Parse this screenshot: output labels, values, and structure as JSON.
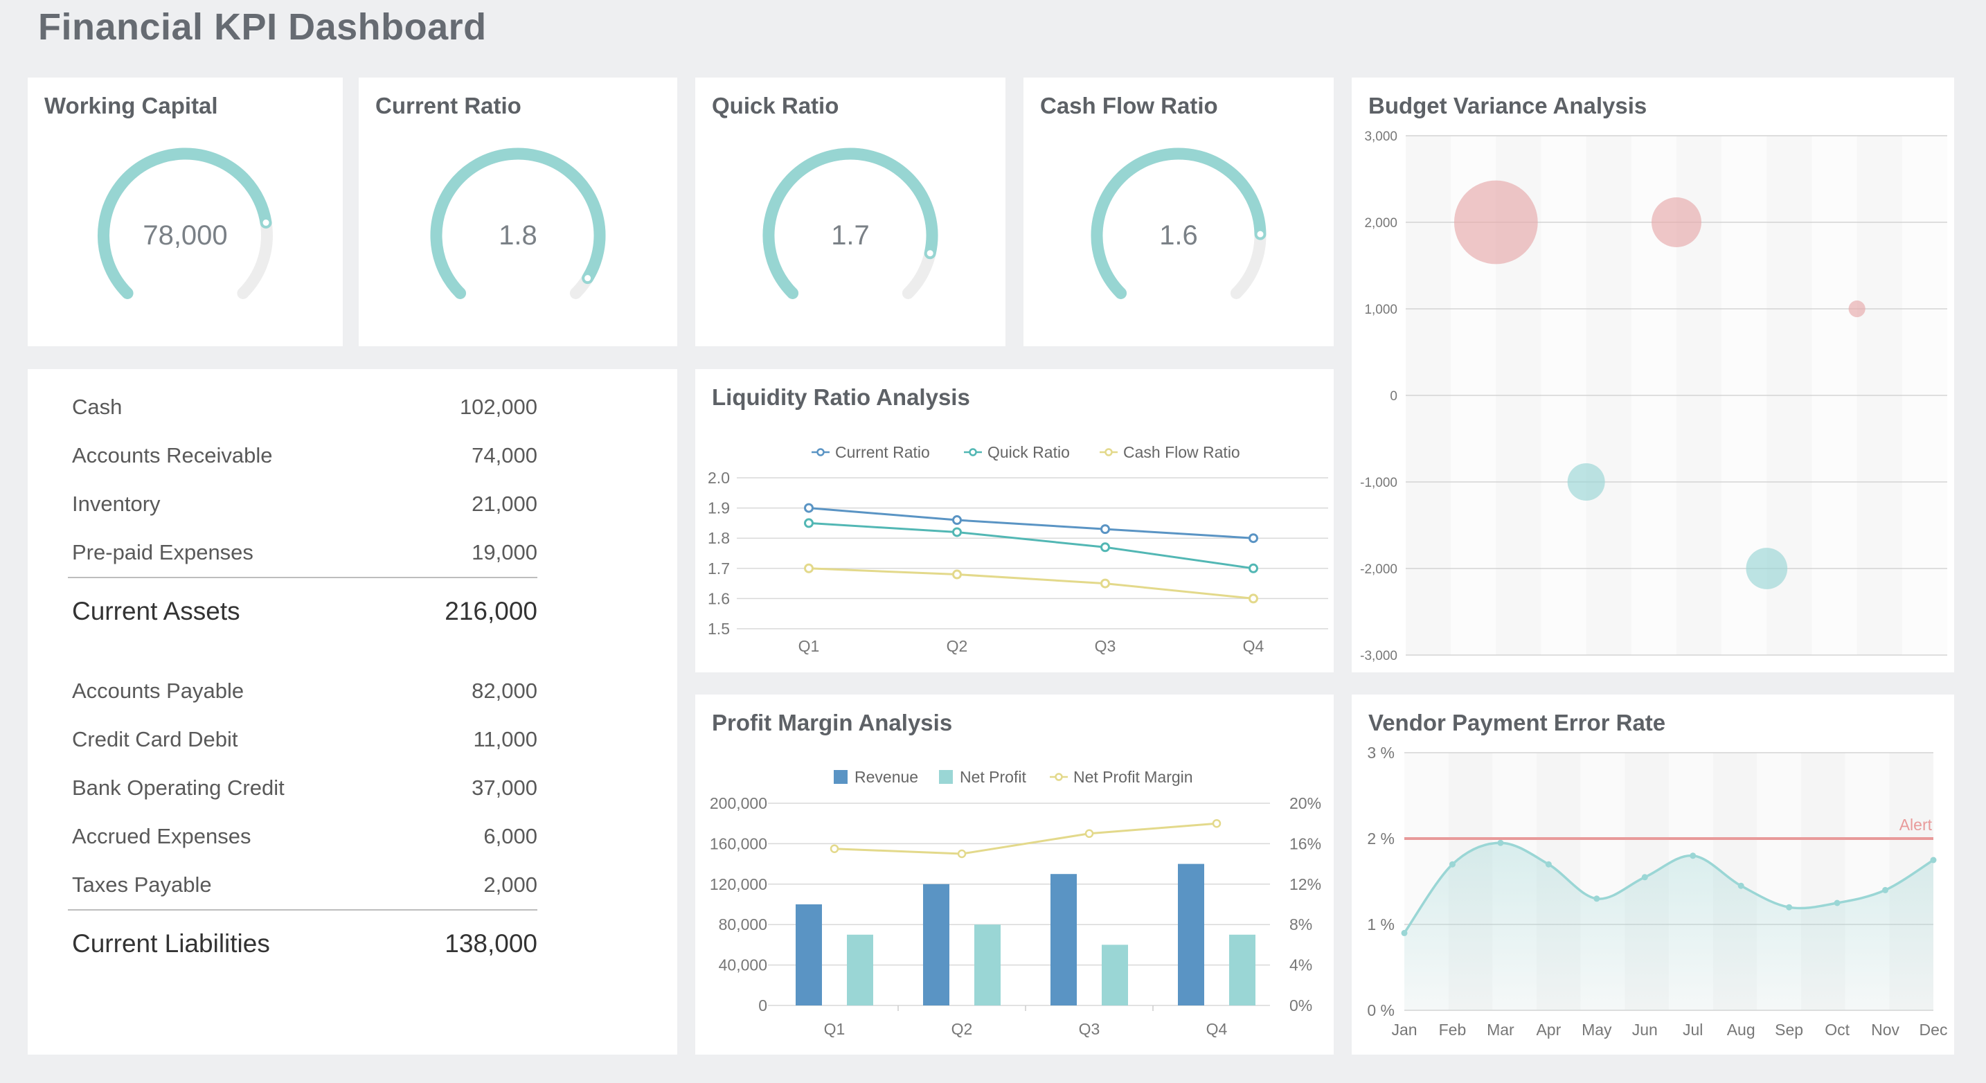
{
  "header": {
    "title": "Financial KPI Dashboard"
  },
  "colors": {
    "gauge": "#97d5d2",
    "gauge_track": "#ededed",
    "blue": "#5a94c4",
    "teal": "#9ad6d5",
    "line_teal": "#52b7b4",
    "yellow": "#e3d98b",
    "pink": "#e7a9ab",
    "alert": "#e89a9a"
  },
  "gauges": [
    {
      "title": "Working Capital",
      "value_label": "78,000",
      "fill": 0.8
    },
    {
      "title": "Current Ratio",
      "value_label": "1.8",
      "fill": 0.95
    },
    {
      "title": "Quick Ratio",
      "value_label": "1.7",
      "fill": 0.88
    },
    {
      "title": "Cash Flow Ratio",
      "value_label": "1.6",
      "fill": 0.83
    }
  ],
  "balance_sheet": {
    "assets": [
      {
        "label": "Cash",
        "value": "102,000"
      },
      {
        "label": "Accounts Receivable",
        "value": "74,000"
      },
      {
        "label": "Inventory",
        "value": "21,000"
      },
      {
        "label": "Pre-paid Expenses",
        "value": "19,000"
      }
    ],
    "assets_total": {
      "label": "Current Assets",
      "value": "216,000"
    },
    "liabilities": [
      {
        "label": "Accounts Payable",
        "value": "82,000"
      },
      {
        "label": "Credit Card Debit",
        "value": "11,000"
      },
      {
        "label": "Bank Operating Credit",
        "value": "37,000"
      },
      {
        "label": "Accrued Expenses",
        "value": "6,000"
      },
      {
        "label": "Taxes Payable",
        "value": "2,000"
      }
    ],
    "liabilities_total": {
      "label": "Current Liabilities",
      "value": "138,000"
    }
  },
  "chart_data": [
    {
      "id": "liquidity",
      "type": "line",
      "title": "Liquidity Ratio Analysis",
      "categories": [
        "Q1",
        "Q2",
        "Q3",
        "Q4"
      ],
      "series": [
        {
          "name": "Current Ratio",
          "values": [
            1.9,
            1.86,
            1.83,
            1.8
          ]
        },
        {
          "name": "Quick Ratio",
          "values": [
            1.85,
            1.82,
            1.77,
            1.7
          ]
        },
        {
          "name": "Cash Flow Ratio",
          "values": [
            1.7,
            1.68,
            1.65,
            1.6
          ]
        }
      ],
      "ylim": [
        1.5,
        2.0
      ],
      "yticks": [
        "1.5",
        "1.6",
        "1.7",
        "1.8",
        "1.9",
        "2.0"
      ]
    },
    {
      "id": "profit",
      "type": "bar",
      "title": "Profit Margin Analysis",
      "categories": [
        "Q1",
        "Q2",
        "Q3",
        "Q4"
      ],
      "series": [
        {
          "name": "Revenue",
          "values": [
            100000,
            120000,
            130000,
            140000
          ]
        },
        {
          "name": "Net Profit",
          "values": [
            70000,
            80000,
            60000,
            70000
          ]
        },
        {
          "name": "Net Profit Margin",
          "values": [
            15.5,
            15,
            17,
            18
          ]
        }
      ],
      "ylim": [
        0,
        200000
      ],
      "y2lim": [
        0,
        20
      ],
      "yticks": [
        "0",
        "40,000",
        "80,000",
        "120,000",
        "160,000",
        "200,000"
      ],
      "y2ticks": [
        "0%",
        "4%",
        "8%",
        "12%",
        "16%",
        "20%"
      ]
    },
    {
      "id": "budget",
      "type": "scatter",
      "title": "Budget Variance Analysis",
      "points": [
        {
          "x": 1,
          "y": 2000,
          "size": 4500
        },
        {
          "x": 3,
          "y": 2000,
          "size": 1600
        },
        {
          "x": 5,
          "y": 1000,
          "size": 180
        },
        {
          "x": 2,
          "y": -1000,
          "size": 900
        },
        {
          "x": 4,
          "y": -2000,
          "size": 1100
        }
      ],
      "xlim": [
        0,
        6
      ],
      "ylim": [
        -3000,
        3000
      ],
      "yticks": [
        "-3,000",
        "-2,000",
        "-1,000",
        "0",
        "1,000",
        "2,000",
        "3,000"
      ]
    },
    {
      "id": "vendor",
      "type": "area",
      "title": "Vendor Payment Error Rate",
      "categories": [
        "Jan",
        "Feb",
        "Mar",
        "Apr",
        "May",
        "Jun",
        "Jul",
        "Aug",
        "Sep",
        "Oct",
        "Nov",
        "Dec"
      ],
      "values": [
        0.9,
        1.7,
        1.95,
        1.7,
        1.3,
        1.55,
        1.8,
        1.45,
        1.2,
        1.25,
        1.4,
        1.75
      ],
      "alert": {
        "value": 2,
        "label": "Alert"
      },
      "ylim": [
        0,
        3
      ],
      "yticks": [
        "0 %",
        "1 %",
        "2 %",
        "3 %"
      ]
    }
  ]
}
